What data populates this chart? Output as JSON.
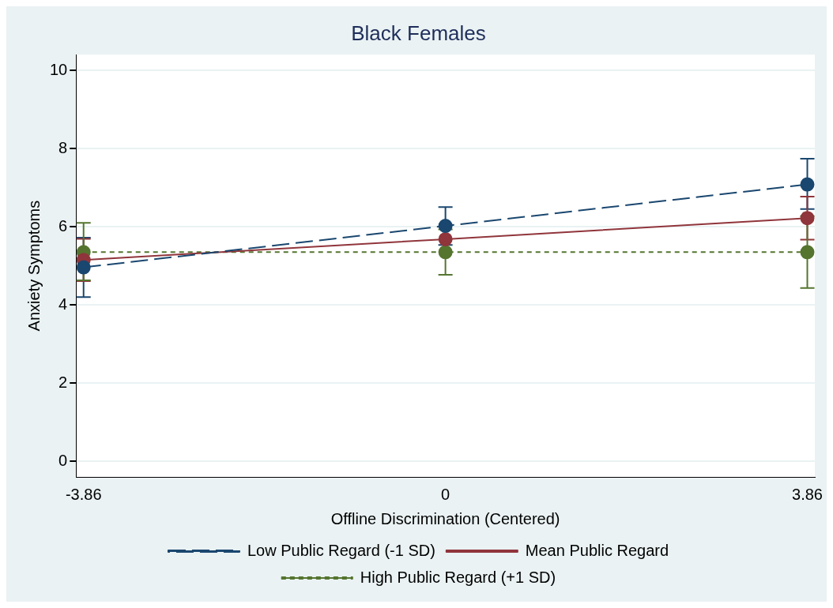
{
  "chart_data": {
    "type": "line",
    "title": "Black Females",
    "xlabel": "Offline Discrimination (Centered)",
    "ylabel": "Anxiety Symptoms",
    "x": [
      -3.86,
      0,
      3.86
    ],
    "xlim": [
      -3.94,
      3.94
    ],
    "xticks": [
      -3.86,
      0,
      3.86
    ],
    "ylim": [
      -0.4,
      10.4
    ],
    "yticks": [
      0,
      2,
      4,
      6,
      8,
      10
    ],
    "grid": "y",
    "legend": "bottom",
    "marker": "circle",
    "series": [
      {
        "name": "Low Public Regard (-1 SD)",
        "color": "#1a476f",
        "line_style": "dashed",
        "values": [
          4.96,
          6.02,
          7.08
        ],
        "errors": [
          0.76,
          [
            5.53,
            6.5
          ],
          [
            6.45,
            7.74
          ]
        ]
      },
      {
        "name": "Mean Public Regard",
        "color": "#90353b",
        "line_style": "solid",
        "values": [
          5.15,
          5.68,
          6.22
        ],
        "errors": [
          0.54,
          null,
          [
            5.67,
            6.77
          ]
        ]
      },
      {
        "name": "High Public Regard (+1 SD)",
        "color": "#55752f",
        "line_style": "dotted",
        "values": [
          5.35,
          5.35,
          5.35
        ],
        "errors": [
          [
            4.63,
            6.1
          ],
          0.58,
          0.92
        ]
      }
    ]
  }
}
